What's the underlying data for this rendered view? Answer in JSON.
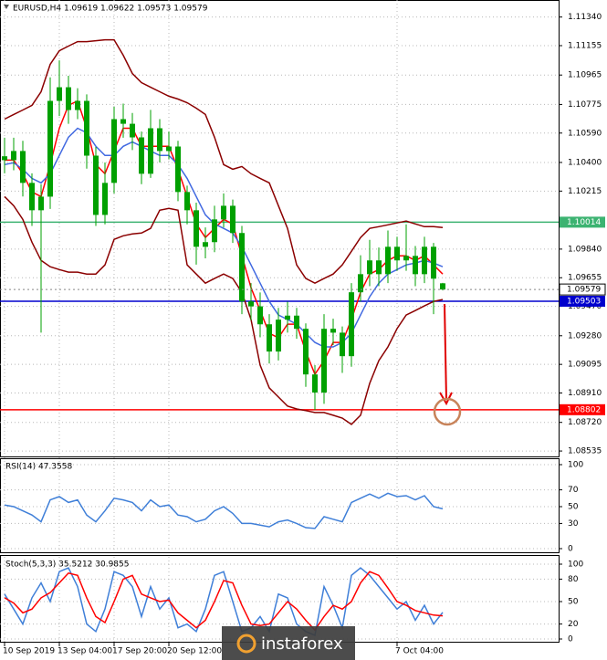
{
  "chart_data": [
    {
      "type": "candlestick",
      "title": "EURUSD,H4 1.09619 1.09622 1.09573 1.09579",
      "categories": [
        "10 Sep 2019",
        null,
        null,
        null,
        null,
        null,
        "13 Sep 04:00",
        null,
        null,
        null,
        null,
        null,
        "17 Sep 20:00",
        null,
        null,
        null,
        null,
        null,
        "20 Sep 12:00",
        null,
        null,
        null,
        null,
        null,
        null,
        null,
        null,
        null,
        null,
        null,
        null,
        null,
        null,
        null,
        null,
        null,
        null,
        null,
        null,
        null,
        null,
        null,
        null,
        "7 Oct 04:00",
        null,
        null,
        null,
        null,
        null
      ],
      "open": [
        1.1044,
        1.10415,
        1.10474,
        1.10268,
        1.10091,
        1.10179,
        1.10798,
        1.10886,
        1.10739,
        1.10798,
        1.10444,
        1.10061,
        1.10268,
        1.1068,
        1.1065,
        1.10562,
        1.10327,
        1.10621,
        1.10474,
        1.10503,
        1.10209,
        1.10091,
        1.09855,
        1.09885,
        1.10032,
        1.1012,
        1.09944,
        1.09502,
        1.0947,
        1.09354,
        1.09178,
        1.09384,
        1.0941,
        1.09325,
        1.0903,
        1.08913,
        1.09325,
        1.093,
        1.09148,
        1.09561,
        1.09678,
        1.09767,
        1.09678,
        1.09855,
        1.09767,
        1.09796,
        1.09678,
        1.09855,
        1.09619
      ],
      "high": [
        1.1056,
        1.1056,
        1.1054,
        1.1033,
        1.1026,
        1.1095,
        1.1106,
        1.1096,
        1.1088,
        1.1084,
        1.105,
        1.104,
        1.1076,
        1.1078,
        1.1072,
        1.106,
        1.1074,
        1.1068,
        1.106,
        1.1054,
        1.1025,
        1.1014,
        1.0998,
        1.1012,
        1.102,
        1.1016,
        1.0999,
        1.0962,
        1.0956,
        1.0942,
        1.0946,
        1.095,
        1.0946,
        1.0936,
        1.0909,
        1.0942,
        1.0939,
        1.0934,
        1.0962,
        1.098,
        1.099,
        1.0985,
        1.0996,
        1.0992,
        1.1,
        1.0986,
        1.0992,
        1.0988,
        1.09622
      ],
      "low": [
        1.1033,
        1.1035,
        1.1018,
        1.0999,
        1.093,
        1.101,
        1.107,
        1.1065,
        1.1068,
        1.1036,
        1.0999,
        1.1,
        1.102,
        1.1056,
        1.1048,
        1.1026,
        1.103,
        1.104,
        1.1042,
        1.1015,
        1.1,
        1.0974,
        1.0978,
        1.0982,
        1.0998,
        1.0988,
        1.0942,
        1.0938,
        1.0927,
        1.091,
        1.0912,
        1.093,
        1.0926,
        1.0895,
        1.088,
        1.0884,
        1.0922,
        1.0904,
        1.0908,
        1.095,
        1.096,
        1.096,
        1.0962,
        1.097,
        1.097,
        1.096,
        1.0962,
        1.0942,
        1.09573
      ],
      "close": [
        1.10415,
        1.10474,
        1.10268,
        1.10091,
        1.10179,
        1.10798,
        1.10886,
        1.10739,
        1.10798,
        1.10444,
        1.10061,
        1.10268,
        1.1068,
        1.1065,
        1.10562,
        1.10327,
        1.10621,
        1.10474,
        1.10503,
        1.10209,
        1.10091,
        1.09855,
        1.09885,
        1.10032,
        1.1012,
        1.09944,
        1.09502,
        1.0947,
        1.09354,
        1.09178,
        1.09384,
        1.0941,
        1.09325,
        1.0903,
        1.08913,
        1.09325,
        1.093,
        1.09148,
        1.09561,
        1.09678,
        1.09767,
        1.09678,
        1.09855,
        1.09767,
        1.09796,
        1.09678,
        1.09855,
        1.09649,
        1.09579
      ],
      "color": "#00a000",
      "lines": [
        {
          "color": "#8b0000",
          "values": [
            1.1068,
            1.1071,
            1.10739,
            1.10769,
            1.10857,
            1.11034,
            1.11122,
            1.11152,
            1.11181,
            1.11181,
            1.11187,
            1.11193,
            1.11193,
            1.11093,
            1.10975,
            1.10916,
            1.10886,
            1.10857,
            1.10828,
            1.1081,
            1.10786,
            1.10751,
            1.1071,
            1.10563,
            1.10386,
            1.10356,
            1.10374,
            1.10327,
            1.10297,
            1.10268,
            1.10121,
            1.09974,
            1.09738,
            1.0965,
            1.0962,
            1.0965,
            1.09679,
            1.09738,
            1.09826,
            1.09915,
            1.09974,
            1.09985,
            1.09997,
            1.10009,
            1.10021,
            1.10003,
            1.09985,
            1.09985,
            1.09979
          ]
        },
        {
          "color": "#8b0000",
          "values": [
            1.1018,
            1.10121,
            1.10032,
            1.09885,
            1.09767,
            1.09726,
            1.09708,
            1.09691,
            1.09691,
            1.09679,
            1.09679,
            1.09738,
            1.09903,
            1.09926,
            1.09938,
            1.09944,
            1.09974,
            1.10091,
            1.10103,
            1.10091,
            1.09738,
            1.09679,
            1.0962,
            1.0965,
            1.09679,
            1.0965,
            1.09561,
            1.09385,
            1.0909,
            1.08943,
            1.08884,
            1.08825,
            1.08807,
            1.08796,
            1.08784,
            1.08784,
            1.08766,
            1.08748,
            1.08707,
            1.08766,
            1.08972,
            1.09119,
            1.09208,
            1.09326,
            1.09414,
            1.09443,
            1.09473,
            1.09502,
            1.09514
          ]
        },
        {
          "color": "#ff0000",
          "values": [
            1.10415,
            1.10415,
            1.10327,
            1.10209,
            1.1018,
            1.10386,
            1.10621,
            1.10769,
            1.10798,
            1.10621,
            1.10386,
            1.10327,
            1.10474,
            1.10621,
            1.10621,
            1.10504,
            1.10504,
            1.10504,
            1.10504,
            1.10356,
            1.1018,
            1.10003,
            1.09915,
            1.09974,
            1.10032,
            1.10003,
            1.09797,
            1.09591,
            1.09443,
            1.09296,
            1.09267,
            1.09355,
            1.09355,
            1.09178,
            1.09031,
            1.09119,
            1.09237,
            1.09237,
            1.09385,
            1.09561,
            1.09679,
            1.09708,
            1.09767,
            1.09797,
            1.09797,
            1.09767,
            1.09797,
            1.09738,
            1.09679
          ]
        },
        {
          "color": "#4169e1",
          "values": [
            1.10386,
            1.10398,
            1.10356,
            1.10297,
            1.10268,
            1.10327,
            1.10445,
            1.10563,
            1.10621,
            1.10592,
            1.10504,
            1.10445,
            1.10445,
            1.10504,
            1.10533,
            1.10504,
            1.10474,
            1.10445,
            1.10445,
            1.10386,
            1.10297,
            1.1018,
            1.10062,
            1.10003,
            1.09974,
            1.09944,
            1.09856,
            1.09738,
            1.0962,
            1.09502,
            1.09414,
            1.09385,
            1.09355,
            1.09296,
            1.09237,
            1.09208,
            1.09208,
            1.09237,
            1.09296,
            1.09414,
            1.09532,
            1.0962,
            1.09679,
            1.09708,
            1.09738,
            1.0975,
            1.09767,
            1.0975,
            1.09726
          ]
        }
      ],
      "levels": [
        {
          "value": 1.10014,
          "color": "#3cb371"
        },
        {
          "value": 1.09503,
          "color": "#0000cd"
        },
        {
          "value": 1.08802,
          "color": "#ff0000"
        }
      ],
      "last_price": 1.09579,
      "ylim": [
        1.085,
        1.1145
      ],
      "yticks": [
        {
          "value": 1.1134,
          "label": "1.11340"
        },
        1.11155,
        1.10965,
        1.10775,
        {
          "value": 1.1059,
          "label": "1.10590"
        },
        {
          "value": 1.104,
          "label": "1.10400"
        },
        1.10215,
        {
          "value": 1.0984,
          "label": "1.09840"
        },
        1.09655,
        {
          "value": 1.0947,
          "label": "1.09470"
        },
        {
          "value": 1.0928,
          "label": "1.09280"
        },
        1.09095,
        {
          "value": 1.0891,
          "label": "1.08910"
        },
        {
          "value": 1.0872,
          "label": "1.08720"
        },
        1.08535
      ],
      "grid": true
    },
    {
      "type": "line",
      "title": "RSI(14) 47.3558",
      "series": [
        {
          "color": "#3f7fd8",
          "values": [
            52,
            50,
            45,
            40,
            32,
            58,
            62,
            55,
            58,
            40,
            32,
            45,
            60,
            58,
            55,
            45,
            58,
            50,
            52,
            40,
            38,
            32,
            35,
            45,
            50,
            42,
            30,
            30,
            28,
            26,
            32,
            34,
            30,
            25,
            24,
            38,
            35,
            32,
            55,
            60,
            65,
            60,
            66,
            62,
            63,
            58,
            63,
            50,
            47.3558
          ]
        }
      ],
      "ylim": [
        0,
        100
      ],
      "yticks": [
        0,
        30,
        50,
        70,
        100
      ],
      "grid": true
    },
    {
      "type": "line",
      "title": "Stoch(5,3,3) 35.5212 30.9855",
      "series": [
        {
          "color": "#3f7fd8",
          "values": [
            60,
            40,
            20,
            55,
            75,
            50,
            90,
            95,
            70,
            20,
            10,
            40,
            90,
            85,
            70,
            30,
            70,
            40,
            55,
            15,
            20,
            10,
            40,
            85,
            90,
            50,
            10,
            15,
            30,
            10,
            60,
            55,
            20,
            10,
            5,
            70,
            45,
            15,
            85,
            95,
            85,
            70,
            55,
            40,
            50,
            25,
            45,
            20,
            35.5212
          ]
        },
        {
          "color": "#ff0000",
          "values": [
            55,
            48,
            35,
            40,
            55,
            62,
            75,
            88,
            85,
            55,
            30,
            22,
            50,
            80,
            85,
            60,
            55,
            50,
            52,
            35,
            25,
            15,
            25,
            50,
            78,
            75,
            45,
            20,
            18,
            20,
            35,
            50,
            40,
            25,
            12,
            30,
            45,
            40,
            50,
            75,
            90,
            85,
            68,
            50,
            45,
            38,
            35,
            32,
            30.9855
          ]
        }
      ],
      "ylim": [
        0,
        100
      ],
      "yticks": [
        0,
        20,
        50,
        80,
        100
      ],
      "grid": true
    }
  ],
  "watermark": "instaforex"
}
